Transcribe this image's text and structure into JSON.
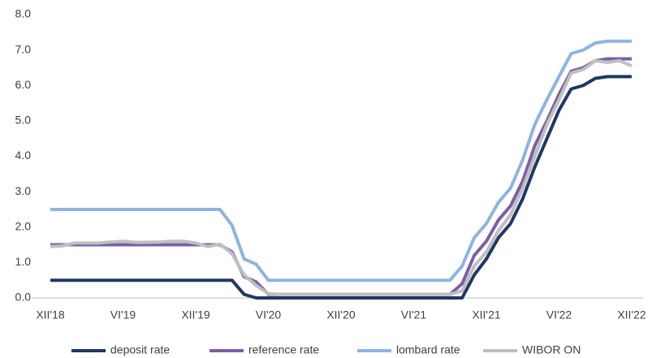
{
  "chart_data": {
    "type": "line",
    "categories": [
      "XII'18",
      null,
      null,
      null,
      null,
      null,
      "VI'19",
      null,
      null,
      null,
      null,
      null,
      "XII'19",
      null,
      null,
      null,
      null,
      null,
      "VI'20",
      null,
      null,
      null,
      null,
      null,
      "XII'20",
      null,
      null,
      null,
      null,
      null,
      "VI'21",
      null,
      null,
      null,
      null,
      null,
      "XII'21",
      null,
      null,
      null,
      null,
      null,
      "VI'22",
      null,
      null,
      null,
      null,
      null,
      "XII'22"
    ],
    "series": [
      {
        "name": "deposit rate",
        "color": "#1f3864",
        "values": [
          0.5,
          0.5,
          0.5,
          0.5,
          0.5,
          0.5,
          0.5,
          0.5,
          0.5,
          0.5,
          0.5,
          0.5,
          0.5,
          0.5,
          0.5,
          0.5,
          0.1,
          0,
          0,
          0,
          0,
          0,
          0,
          0,
          0,
          0,
          0,
          0,
          0,
          0,
          0,
          0,
          0,
          0,
          0,
          0.65,
          1.1,
          1.7,
          2.1,
          2.8,
          3.7,
          4.5,
          5.3,
          5.9,
          6.0,
          6.2,
          6.25,
          6.25,
          6.25
        ]
      },
      {
        "name": "reference rate",
        "color": "#7b5ea7",
        "values": [
          1.5,
          1.5,
          1.5,
          1.5,
          1.5,
          1.5,
          1.5,
          1.5,
          1.5,
          1.5,
          1.5,
          1.5,
          1.5,
          1.5,
          1.5,
          1.3,
          0.6,
          0.45,
          0.1,
          0.1,
          0.1,
          0.1,
          0.1,
          0.1,
          0.1,
          0.1,
          0.1,
          0.1,
          0.1,
          0.1,
          0.1,
          0.1,
          0.1,
          0.1,
          0.4,
          1.2,
          1.6,
          2.2,
          2.6,
          3.3,
          4.3,
          5.0,
          5.75,
          6.4,
          6.5,
          6.7,
          6.75,
          6.75,
          6.75
        ]
      },
      {
        "name": "lombard rate",
        "color": "#8db4e2",
        "values": [
          2.5,
          2.5,
          2.5,
          2.5,
          2.5,
          2.5,
          2.5,
          2.5,
          2.5,
          2.5,
          2.5,
          2.5,
          2.5,
          2.5,
          2.5,
          2.05,
          1.1,
          0.95,
          0.5,
          0.5,
          0.5,
          0.5,
          0.5,
          0.5,
          0.5,
          0.5,
          0.5,
          0.5,
          0.5,
          0.5,
          0.5,
          0.5,
          0.5,
          0.5,
          0.9,
          1.7,
          2.1,
          2.7,
          3.1,
          3.9,
          4.9,
          5.6,
          6.25,
          6.9,
          7.0,
          7.2,
          7.25,
          7.25,
          7.25
        ]
      },
      {
        "name": "WIBOR ON",
        "color": "#bfbfbf",
        "values": [
          1.45,
          1.47,
          1.55,
          1.55,
          1.55,
          1.58,
          1.6,
          1.57,
          1.57,
          1.58,
          1.6,
          1.6,
          1.55,
          1.45,
          1.52,
          1.25,
          0.65,
          0.35,
          0.12,
          0.1,
          0.1,
          0.1,
          0.1,
          0.1,
          0.1,
          0.1,
          0.1,
          0.1,
          0.1,
          0.1,
          0.1,
          0.1,
          0.1,
          0.1,
          0.2,
          0.9,
          1.3,
          1.9,
          2.35,
          3.1,
          4.0,
          4.9,
          5.6,
          6.35,
          6.45,
          6.7,
          6.65,
          6.7,
          6.55
        ]
      }
    ],
    "ylim": [
      0,
      8
    ],
    "yticks": [
      {
        "value": 0,
        "label": "0.0"
      },
      {
        "value": 1,
        "label": "1.0"
      },
      {
        "value": 2,
        "label": "2.0"
      },
      {
        "value": 3,
        "label": "3.0"
      },
      {
        "value": 4,
        "label": "4.0"
      },
      {
        "value": 5,
        "label": "5.0"
      },
      {
        "value": 6,
        "label": "6.0"
      },
      {
        "value": 7,
        "label": "7.0"
      },
      {
        "value": 8,
        "label": "8.0"
      }
    ],
    "grid": false,
    "legend": "bottom"
  }
}
